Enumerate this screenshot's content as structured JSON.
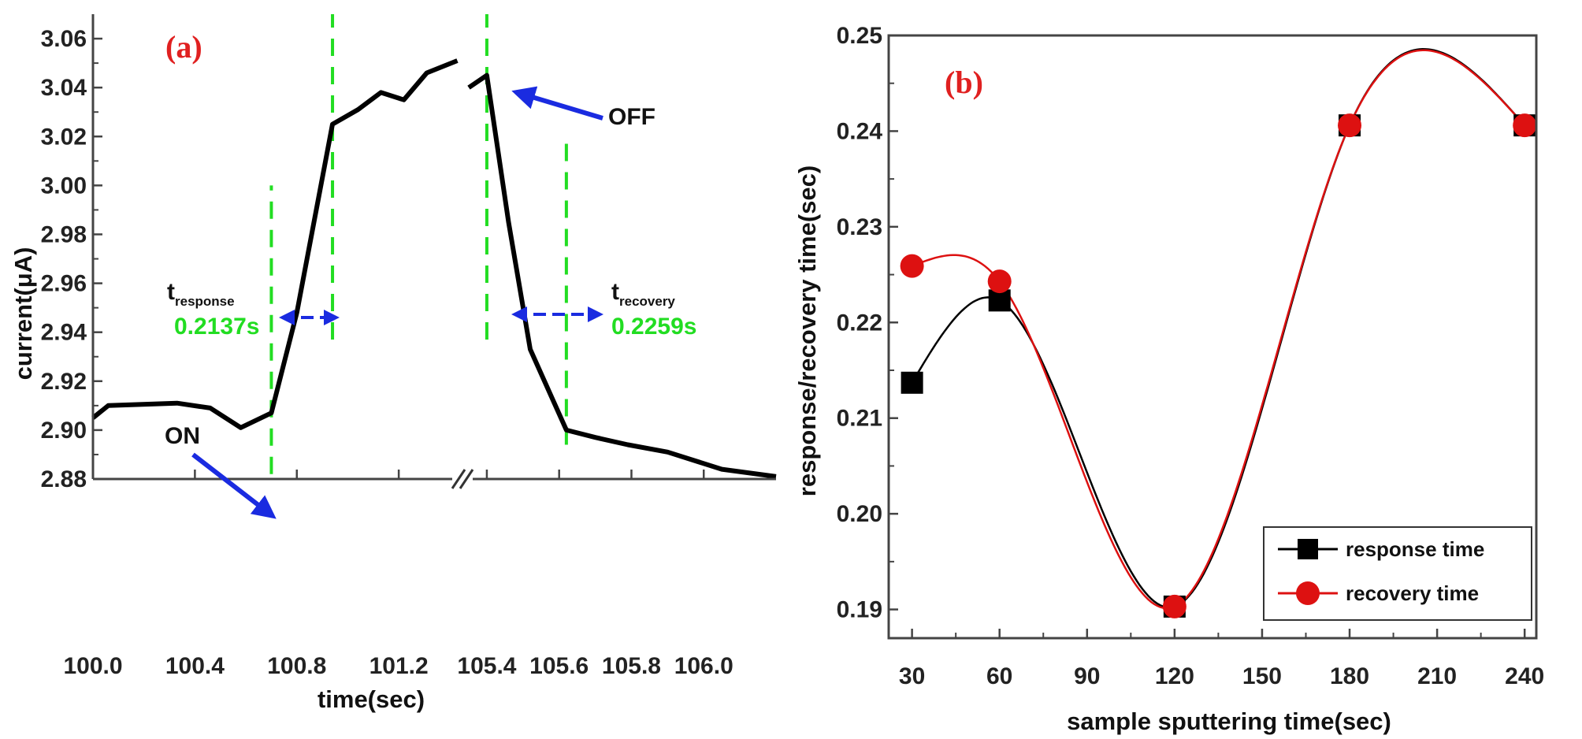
{
  "chart_data": [
    {
      "panel_label": "(a)",
      "type": "line",
      "xlabel": "time(sec)",
      "ylabel": "current(μA)",
      "xticks": [
        "100.0",
        "100.4",
        "100.8",
        "101.2",
        "105.4",
        "105.6",
        "105.8",
        "106.0"
      ],
      "yticks": [
        "2.88",
        "2.90",
        "2.92",
        "2.94",
        "2.96",
        "2.98",
        "3.00",
        "3.02",
        "3.04",
        "3.06"
      ],
      "ylim": [
        2.88,
        3.07
      ],
      "axis_break": [
        101.45,
        105.35
      ],
      "segments": [
        {
          "xlim": [
            100.0,
            101.45
          ],
          "points": [
            [
              100.0,
              2.905
            ],
            [
              100.06,
              2.91
            ],
            [
              100.33,
              2.911
            ],
            [
              100.46,
              2.909
            ],
            [
              100.58,
              2.901
            ],
            [
              100.7,
              2.907
            ],
            [
              100.8,
              2.948
            ],
            [
              100.94,
              3.025
            ],
            [
              101.04,
              3.031
            ],
            [
              101.13,
              3.038
            ],
            [
              101.22,
              3.035
            ],
            [
              101.31,
              3.046
            ],
            [
              101.43,
              3.051
            ]
          ]
        },
        {
          "xlim": [
            105.35,
            106.2
          ],
          "points": [
            [
              105.35,
              3.04
            ],
            [
              105.4,
              3.045
            ],
            [
              105.46,
              2.985
            ],
            [
              105.52,
              2.933
            ],
            [
              105.62,
              2.9
            ],
            [
              105.7,
              2.897
            ],
            [
              105.79,
              2.894
            ],
            [
              105.9,
              2.891
            ],
            [
              106.05,
              2.884
            ],
            [
              106.2,
              2.881
            ]
          ]
        }
      ],
      "annotations": {
        "on_label": "ON",
        "off_label": "OFF",
        "response_label": "t",
        "response_sub": "response",
        "response_value": "0.2137s",
        "recovery_label": "t",
        "recovery_sub": "recovery",
        "recovery_value": "0.2259s"
      },
      "line_color": "#000000",
      "guide_color": "#22dd22",
      "arrow_color": "#1a2be0"
    },
    {
      "panel_label": "(b)",
      "type": "line",
      "xlabel": "sample sputtering time(sec)",
      "ylabel": "response/recovery time(sec)",
      "xticks": [
        "30",
        "60",
        "90",
        "120",
        "150",
        "180",
        "210",
        "240"
      ],
      "yticks": [
        "0.19",
        "0.20",
        "0.21",
        "0.22",
        "0.23",
        "0.24",
        "0.25"
      ],
      "xlim": [
        22,
        244
      ],
      "ylim": [
        0.187,
        0.25
      ],
      "legend_position": "bottom-right",
      "series": [
        {
          "name": "response time",
          "marker": "square",
          "color": "#000000",
          "x": [
            30,
            60,
            120,
            180,
            240
          ],
          "y": [
            0.2137,
            0.2223,
            0.1903,
            0.2406,
            0.2406
          ]
        },
        {
          "name": "recovery time",
          "marker": "circle",
          "color": "#dd1111",
          "x": [
            30,
            60,
            120,
            180,
            240
          ],
          "y": [
            0.2259,
            0.2243,
            0.1903,
            0.2406,
            0.2406
          ]
        }
      ]
    }
  ]
}
